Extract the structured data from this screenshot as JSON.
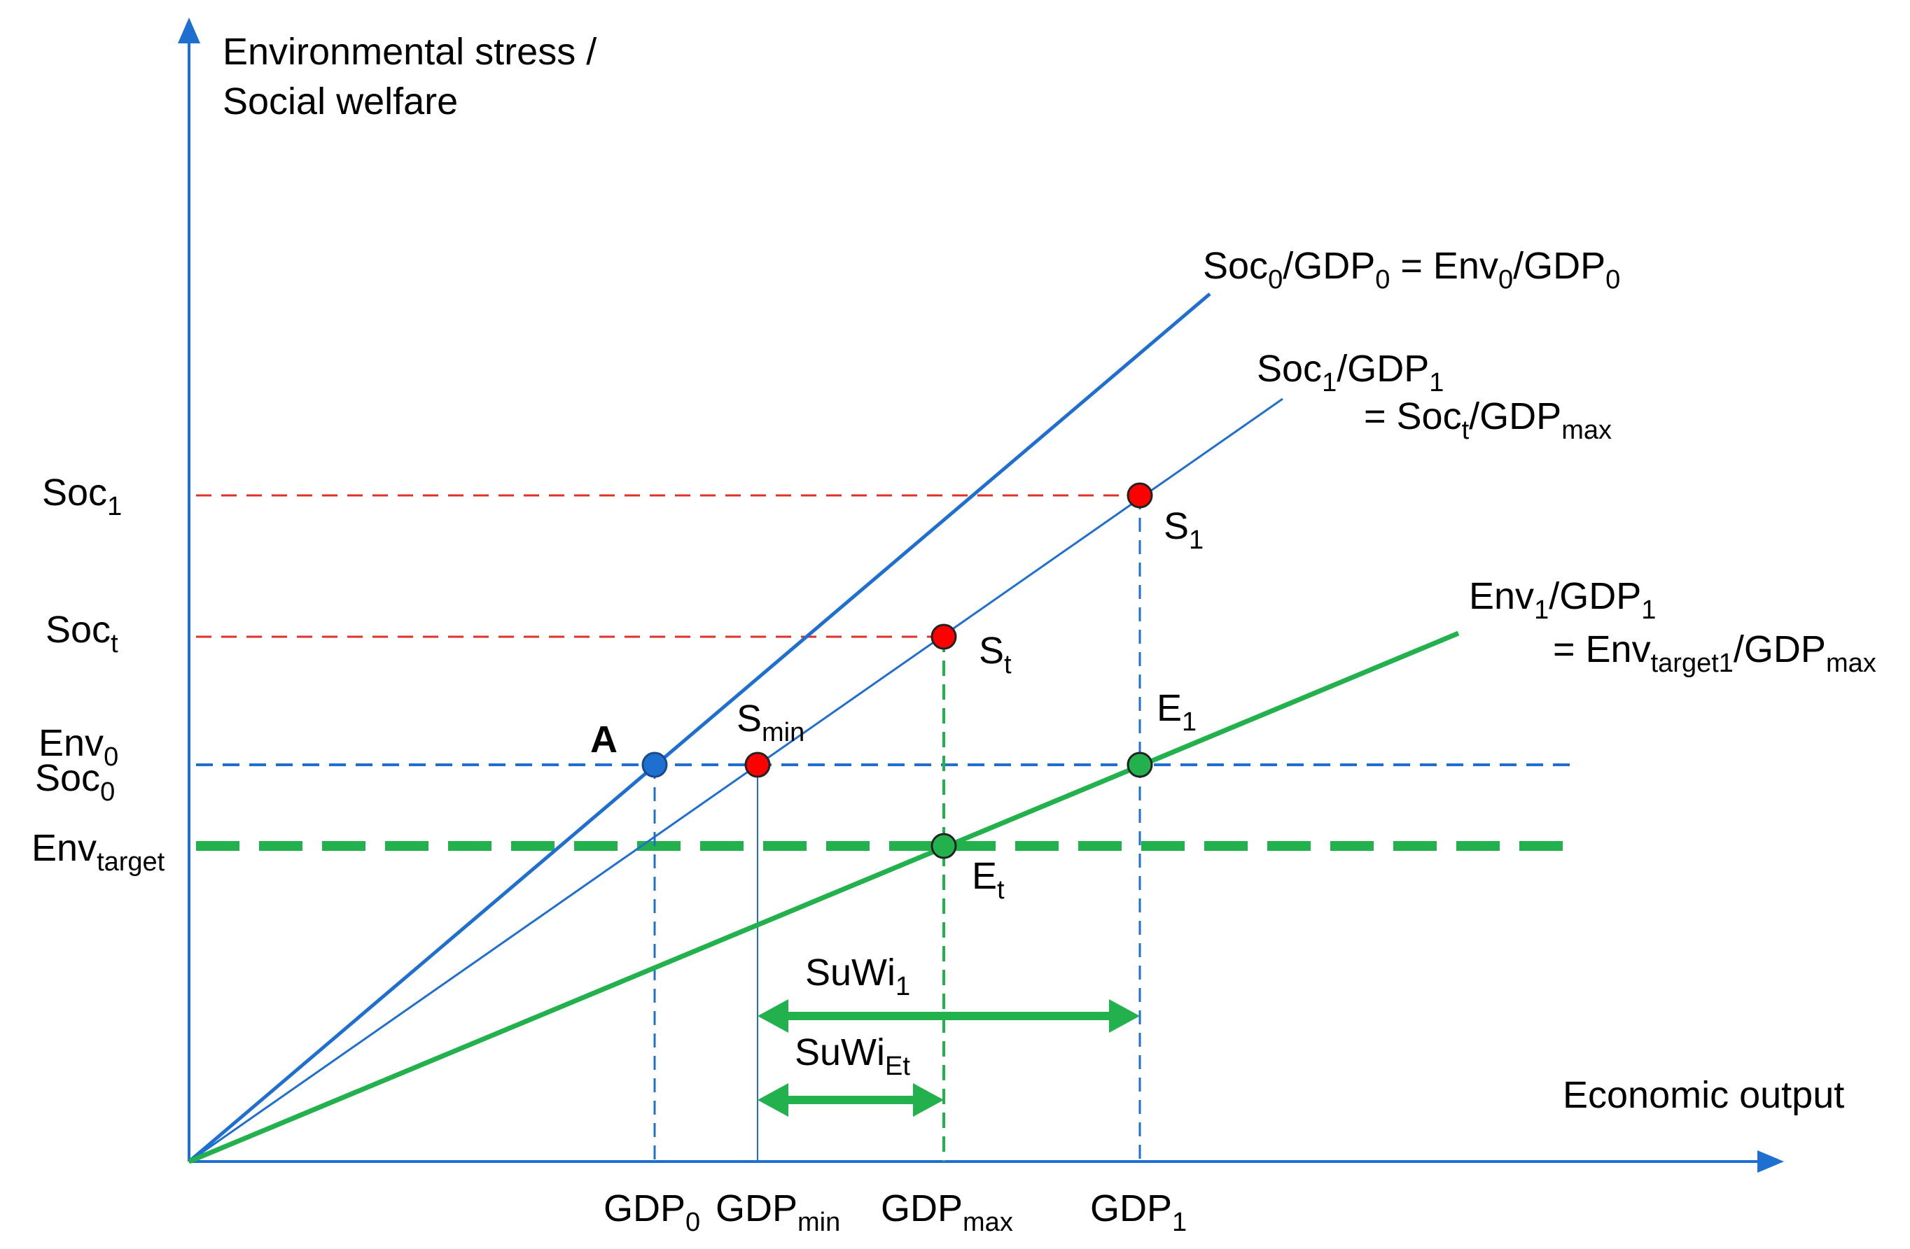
{
  "colors": {
    "axis": "#1f6fd1",
    "blue_line": "#1f6fd1",
    "green_line": "#22b14c",
    "red_dash": "#e0302a",
    "blue_dot": "#1f6fd1",
    "red_dot": "#ff0000",
    "green_dot": "#22b14c",
    "text": "#000000"
  },
  "axes": {
    "y_title_line1": "Environmental stress /",
    "y_title_line2": "Social welfare",
    "x_title": "Economic output"
  },
  "lines": {
    "soc0": {
      "main": "Soc",
      "sub0": "0",
      "mid": "/GDP",
      "sub1": "0",
      "eq": " = Env",
      "sub2": "0",
      "mid2": "/GDP",
      "sub3": "0"
    },
    "soc1": {
      "main": "Soc",
      "sub0": "1",
      "mid": "/GDP",
      "sub1": "1"
    },
    "soct": {
      "eq": "= Soc",
      "sub0": "t",
      "mid": "/GDP",
      "sub1": "max"
    },
    "env1": {
      "main": "Env",
      "sub0": "1",
      "mid": "/GDP",
      "sub1": "1"
    },
    "envt": {
      "eq": "= Env",
      "sub0": "target1",
      "mid": "/GDP",
      "sub1": "max"
    }
  },
  "y_labels": {
    "soc1": {
      "main": "Soc",
      "sub": "1"
    },
    "soct": {
      "main": "Soc",
      "sub": "t"
    },
    "env0": {
      "main": "Env",
      "sub": "0"
    },
    "soc0": {
      "main": "Soc",
      "sub": "0"
    },
    "envtarget": {
      "main": "Env",
      "sub": "target"
    }
  },
  "x_labels": {
    "gdp0": {
      "main": "GDP",
      "sub": "0"
    },
    "gdpmin": {
      "main": "GDP",
      "sub": "min"
    },
    "gdpmax": {
      "main": "GDP",
      "sub": "max"
    },
    "gdp1": {
      "main": "GDP",
      "sub": "1"
    }
  },
  "points": {
    "A": "A",
    "smin": {
      "main": "S",
      "sub": "min"
    },
    "s1": {
      "main": "S",
      "sub": "1"
    },
    "st": {
      "main": "S",
      "sub": "t"
    },
    "e1": {
      "main": "E",
      "sub": "1"
    },
    "et": {
      "main": "E",
      "sub": "t"
    }
  },
  "arrows": {
    "suwi1": {
      "main": "SuWi",
      "sub": "1"
    },
    "suwiet": {
      "main": "SuWi",
      "sub": "Et"
    }
  }
}
